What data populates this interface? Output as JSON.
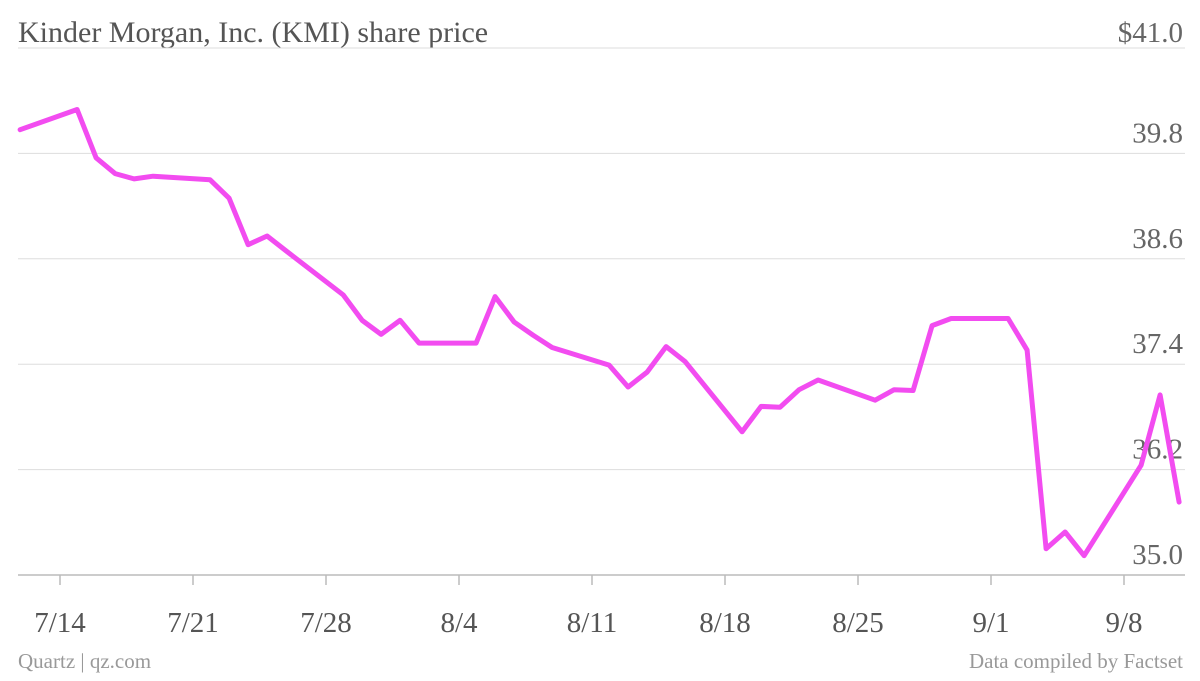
{
  "chart_data": {
    "type": "line",
    "title": "Kinder Morgan, Inc. (KMI) share price",
    "source": "Data compiled by Factset",
    "credit": "Quartz | qz.com",
    "x": [
      "7/11",
      "7/14",
      "7/15",
      "7/16",
      "7/17",
      "7/18",
      "7/21",
      "7/22",
      "7/23",
      "7/24",
      "7/25",
      "7/28",
      "7/29",
      "7/30",
      "7/31",
      "8/1",
      "8/4",
      "8/5",
      "8/6",
      "8/7",
      "8/8",
      "8/11",
      "8/12",
      "8/13",
      "8/14",
      "8/15",
      "8/18",
      "8/19",
      "8/20",
      "8/21",
      "8/22",
      "8/25",
      "8/26",
      "8/27",
      "8/28",
      "8/29",
      "9/1",
      "9/2",
      "9/3",
      "9/4",
      "9/5",
      "9/8",
      "9/9",
      "9/10"
    ],
    "series": [
      {
        "name": "KMI",
        "color": "#f24cf0",
        "values": [
          40.07,
          40.3,
          39.75,
          39.57,
          39.51,
          39.54,
          39.5,
          39.29,
          38.76,
          38.86,
          38.69,
          38.19,
          37.9,
          37.74,
          37.9,
          37.64,
          37.64,
          38.17,
          37.88,
          37.73,
          37.59,
          37.39,
          37.14,
          37.31,
          37.6,
          37.43,
          36.63,
          36.92,
          36.91,
          37.11,
          37.22,
          36.99,
          37.11,
          37.1,
          37.84,
          37.92,
          37.92,
          37.56,
          35.3,
          35.49,
          35.22,
          36.25,
          37.05,
          35.83
        ]
      }
    ],
    "xticks": [
      "7/14",
      "7/21",
      "7/28",
      "8/4",
      "8/11",
      "8/18",
      "8/25",
      "9/1",
      "9/8"
    ],
    "ylim": [
      35,
      41
    ],
    "yticks": [
      {
        "value": 35,
        "label": "35.0"
      },
      36.2,
      37.4,
      38.6,
      39.8,
      {
        "value": 41,
        "label": "$41.0"
      }
    ],
    "grid": true
  }
}
